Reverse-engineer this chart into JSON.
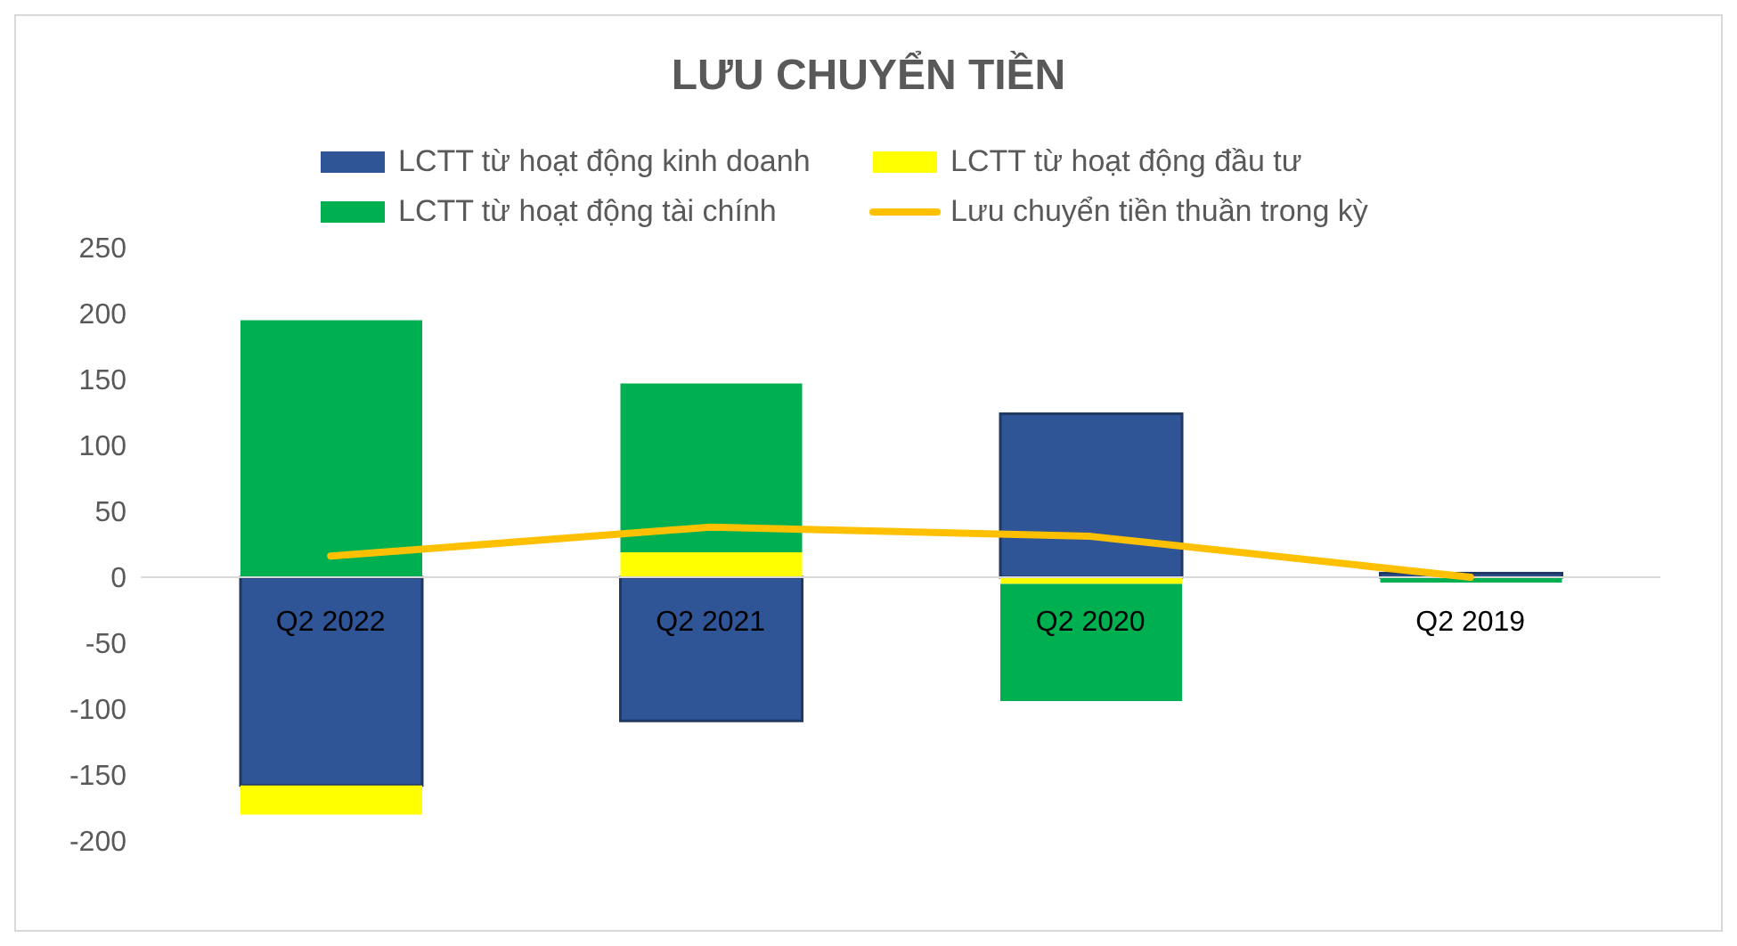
{
  "chart_data": {
    "type": "bar",
    "title": "LƯU CHUYỂN TIỀN",
    "categories": [
      "Q2 2022",
      "Q2 2021",
      "Q2 2020",
      "Q2 2019"
    ],
    "stacked": true,
    "series": [
      {
        "name": "LCTT từ hoạt động kinh doanh",
        "color": "#2f5597",
        "values": [
          -158,
          -109,
          124,
          3
        ]
      },
      {
        "name": "LCTT từ hoạt động đầu tư",
        "color": "#ffff00",
        "values": [
          -22,
          19,
          -5,
          null
        ]
      },
      {
        "name": "LCTT từ hoạt động tài chính",
        "color": "#00b050",
        "values": [
          195,
          128,
          -89,
          -4
        ]
      },
      {
        "name": "Lưu chuyển tiền thuần trong kỳ",
        "color": "#ffc000",
        "type": "line",
        "values": [
          16,
          38,
          31,
          0
        ]
      }
    ],
    "ylim": [
      -200,
      250
    ],
    "yticks": [
      -200,
      -150,
      -100,
      -50,
      0,
      50,
      100,
      150,
      200,
      250
    ],
    "grid": false,
    "legend": "top",
    "marker": "none"
  }
}
